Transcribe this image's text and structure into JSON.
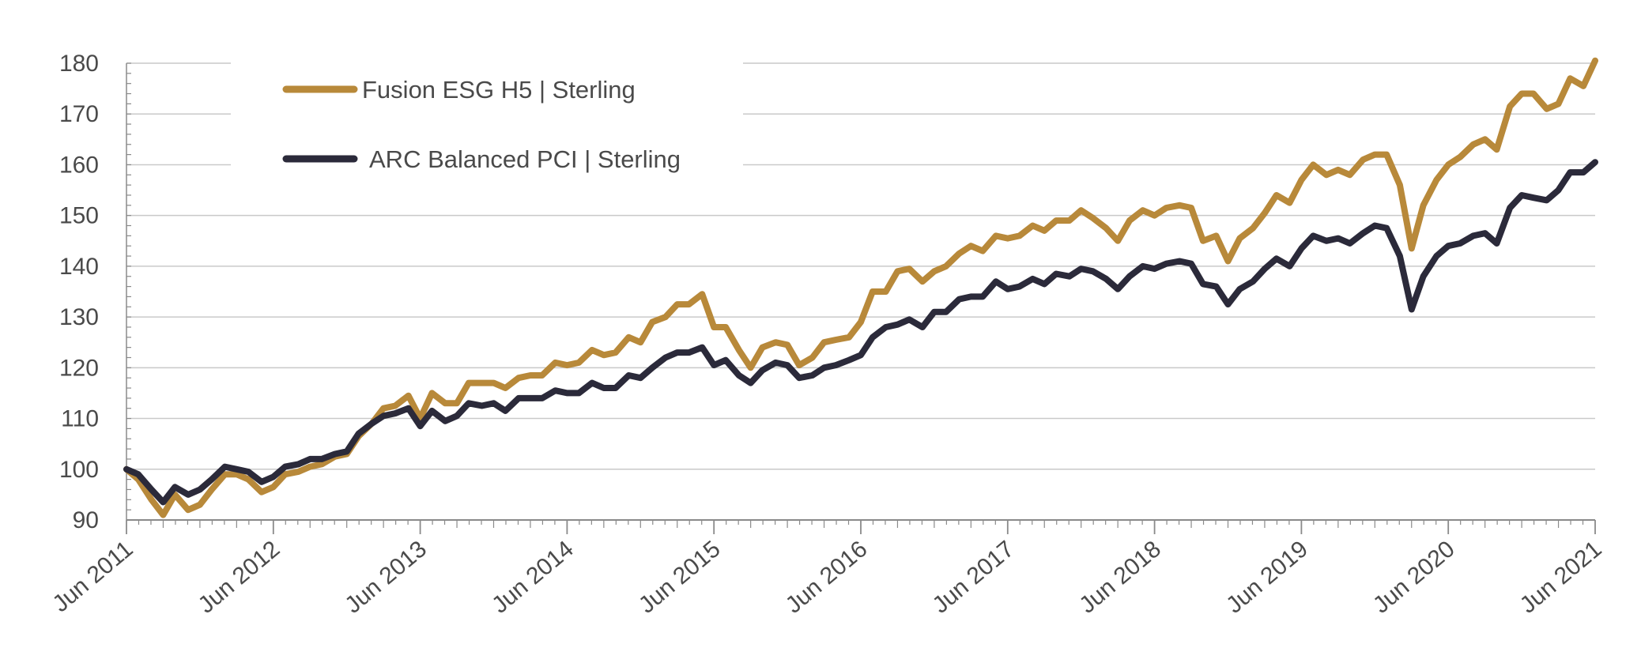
{
  "chart_data": {
    "type": "line",
    "title": "",
    "xlabel": "",
    "ylabel": "",
    "ylim": [
      90,
      180
    ],
    "yticks": [
      90,
      100,
      110,
      120,
      130,
      140,
      150,
      160,
      170,
      180
    ],
    "xlim": [
      2011.5,
      2021.5
    ],
    "xticks": [
      {
        "value": 2011.5,
        "label": "Jun 2011"
      },
      {
        "value": 2012.5,
        "label": "Jun 2012"
      },
      {
        "value": 2013.5,
        "label": "Jun 2013"
      },
      {
        "value": 2014.5,
        "label": "Jun 2014"
      },
      {
        "value": 2015.5,
        "label": "Jun 2015"
      },
      {
        "value": 2016.5,
        "label": "Jun 2016"
      },
      {
        "value": 2017.5,
        "label": "Jun 2017"
      },
      {
        "value": 2018.5,
        "label": "Jun 2018"
      },
      {
        "value": 2019.5,
        "label": "Jun 2019"
      },
      {
        "value": 2020.5,
        "label": "Jun 2020"
      },
      {
        "value": 2021.5,
        "label": "Jun 2021"
      }
    ],
    "grid": {
      "horizontal": true,
      "vertical": false
    },
    "legend_position": "top-left",
    "series": [
      {
        "name": "Fusion ESG H5 | Sterling",
        "color": "#b8893a",
        "points": [
          [
            2011.5,
            100
          ],
          [
            2011.58,
            98
          ],
          [
            2011.67,
            94
          ],
          [
            2011.75,
            91
          ],
          [
            2011.83,
            95
          ],
          [
            2011.92,
            92
          ],
          [
            2012.0,
            93
          ],
          [
            2012.08,
            96
          ],
          [
            2012.17,
            99
          ],
          [
            2012.25,
            99
          ],
          [
            2012.33,
            98
          ],
          [
            2012.42,
            95.5
          ],
          [
            2012.5,
            96.5
          ],
          [
            2012.58,
            99
          ],
          [
            2012.67,
            99.5
          ],
          [
            2012.75,
            100.5
          ],
          [
            2012.83,
            101
          ],
          [
            2012.92,
            102.5
          ],
          [
            2013.0,
            103
          ],
          [
            2013.08,
            106.5
          ],
          [
            2013.17,
            109
          ],
          [
            2013.25,
            112
          ],
          [
            2013.33,
            112.5
          ],
          [
            2013.42,
            114.5
          ],
          [
            2013.5,
            110
          ],
          [
            2013.58,
            115
          ],
          [
            2013.67,
            113
          ],
          [
            2013.75,
            113
          ],
          [
            2013.83,
            117
          ],
          [
            2013.92,
            117
          ],
          [
            2014.0,
            117
          ],
          [
            2014.08,
            116
          ],
          [
            2014.17,
            118
          ],
          [
            2014.25,
            118.5
          ],
          [
            2014.33,
            118.5
          ],
          [
            2014.42,
            121
          ],
          [
            2014.5,
            120.5
          ],
          [
            2014.58,
            121
          ],
          [
            2014.67,
            123.5
          ],
          [
            2014.75,
            122.5
          ],
          [
            2014.83,
            123
          ],
          [
            2014.92,
            126
          ],
          [
            2015.0,
            125
          ],
          [
            2015.08,
            129
          ],
          [
            2015.17,
            130
          ],
          [
            2015.25,
            132.5
          ],
          [
            2015.33,
            132.5
          ],
          [
            2015.42,
            134.5
          ],
          [
            2015.5,
            128
          ],
          [
            2015.58,
            128
          ],
          [
            2015.67,
            123.5
          ],
          [
            2015.75,
            120
          ],
          [
            2015.83,
            124
          ],
          [
            2015.92,
            125
          ],
          [
            2016.0,
            124.5
          ],
          [
            2016.08,
            120.5
          ],
          [
            2016.17,
            122
          ],
          [
            2016.25,
            125
          ],
          [
            2016.33,
            125.5
          ],
          [
            2016.42,
            126
          ],
          [
            2016.5,
            129
          ],
          [
            2016.58,
            135
          ],
          [
            2016.67,
            135
          ],
          [
            2016.75,
            139
          ],
          [
            2016.83,
            139.5
          ],
          [
            2016.92,
            137
          ],
          [
            2017.0,
            139
          ],
          [
            2017.08,
            140
          ],
          [
            2017.17,
            142.5
          ],
          [
            2017.25,
            144
          ],
          [
            2017.33,
            143
          ],
          [
            2017.42,
            146
          ],
          [
            2017.5,
            145.5
          ],
          [
            2017.58,
            146
          ],
          [
            2017.67,
            148
          ],
          [
            2017.75,
            147
          ],
          [
            2017.83,
            149
          ],
          [
            2017.92,
            149
          ],
          [
            2018.0,
            151
          ],
          [
            2018.08,
            149.5
          ],
          [
            2018.17,
            147.5
          ],
          [
            2018.25,
            145
          ],
          [
            2018.33,
            149
          ],
          [
            2018.42,
            151
          ],
          [
            2018.5,
            150
          ],
          [
            2018.58,
            151.5
          ],
          [
            2018.67,
            152
          ],
          [
            2018.75,
            151.5
          ],
          [
            2018.83,
            145
          ],
          [
            2018.92,
            146
          ],
          [
            2019.0,
            141
          ],
          [
            2019.08,
            145.5
          ],
          [
            2019.17,
            147.5
          ],
          [
            2019.25,
            150.5
          ],
          [
            2019.33,
            154
          ],
          [
            2019.42,
            152.5
          ],
          [
            2019.5,
            157
          ],
          [
            2019.58,
            160
          ],
          [
            2019.67,
            158
          ],
          [
            2019.75,
            159
          ],
          [
            2019.83,
            158
          ],
          [
            2019.92,
            161
          ],
          [
            2020.0,
            162
          ],
          [
            2020.08,
            162
          ],
          [
            2020.17,
            156
          ],
          [
            2020.25,
            143.5
          ],
          [
            2020.33,
            152
          ],
          [
            2020.42,
            157
          ],
          [
            2020.5,
            160
          ],
          [
            2020.58,
            161.5
          ],
          [
            2020.67,
            164
          ],
          [
            2020.75,
            165
          ],
          [
            2020.83,
            163
          ],
          [
            2020.92,
            171.5
          ],
          [
            2021.0,
            174
          ],
          [
            2021.08,
            174
          ],
          [
            2021.17,
            171
          ],
          [
            2021.25,
            172
          ],
          [
            2021.33,
            177
          ],
          [
            2021.42,
            175.5
          ],
          [
            2021.5,
            180.5
          ]
        ]
      },
      {
        "name": "ARC Balanced PCI | Sterling",
        "color": "#2b2a3a",
        "points": [
          [
            2011.5,
            100
          ],
          [
            2011.58,
            99
          ],
          [
            2011.67,
            96
          ],
          [
            2011.75,
            93.5
          ],
          [
            2011.83,
            96.5
          ],
          [
            2011.92,
            95
          ],
          [
            2012.0,
            96
          ],
          [
            2012.08,
            98
          ],
          [
            2012.17,
            100.5
          ],
          [
            2012.25,
            100
          ],
          [
            2012.33,
            99.5
          ],
          [
            2012.42,
            97.5
          ],
          [
            2012.5,
            98.5
          ],
          [
            2012.58,
            100.5
          ],
          [
            2012.67,
            101
          ],
          [
            2012.75,
            102
          ],
          [
            2012.83,
            102
          ],
          [
            2012.92,
            103
          ],
          [
            2013.0,
            103.5
          ],
          [
            2013.08,
            107
          ],
          [
            2013.17,
            109
          ],
          [
            2013.25,
            110.5
          ],
          [
            2013.33,
            111
          ],
          [
            2013.42,
            112
          ],
          [
            2013.5,
            108.5
          ],
          [
            2013.58,
            111.5
          ],
          [
            2013.67,
            109.5
          ],
          [
            2013.75,
            110.5
          ],
          [
            2013.83,
            113
          ],
          [
            2013.92,
            112.5
          ],
          [
            2014.0,
            113
          ],
          [
            2014.08,
            111.5
          ],
          [
            2014.17,
            114
          ],
          [
            2014.25,
            114
          ],
          [
            2014.33,
            114
          ],
          [
            2014.42,
            115.5
          ],
          [
            2014.5,
            115
          ],
          [
            2014.58,
            115
          ],
          [
            2014.67,
            117
          ],
          [
            2014.75,
            116
          ],
          [
            2014.83,
            116
          ],
          [
            2014.92,
            118.5
          ],
          [
            2015.0,
            118
          ],
          [
            2015.08,
            120
          ],
          [
            2015.17,
            122
          ],
          [
            2015.25,
            123
          ],
          [
            2015.33,
            123
          ],
          [
            2015.42,
            124
          ],
          [
            2015.5,
            120.5
          ],
          [
            2015.58,
            121.5
          ],
          [
            2015.67,
            118.5
          ],
          [
            2015.75,
            117
          ],
          [
            2015.83,
            119.5
          ],
          [
            2015.92,
            121
          ],
          [
            2016.0,
            120.5
          ],
          [
            2016.08,
            118
          ],
          [
            2016.17,
            118.5
          ],
          [
            2016.25,
            120
          ],
          [
            2016.33,
            120.5
          ],
          [
            2016.42,
            121.5
          ],
          [
            2016.5,
            122.5
          ],
          [
            2016.58,
            126
          ],
          [
            2016.67,
            128
          ],
          [
            2016.75,
            128.5
          ],
          [
            2016.83,
            129.5
          ],
          [
            2016.92,
            128
          ],
          [
            2017.0,
            131
          ],
          [
            2017.08,
            131
          ],
          [
            2017.17,
            133.5
          ],
          [
            2017.25,
            134
          ],
          [
            2017.33,
            134
          ],
          [
            2017.42,
            137
          ],
          [
            2017.5,
            135.5
          ],
          [
            2017.58,
            136
          ],
          [
            2017.67,
            137.5
          ],
          [
            2017.75,
            136.5
          ],
          [
            2017.83,
            138.5
          ],
          [
            2017.92,
            138
          ],
          [
            2018.0,
            139.5
          ],
          [
            2018.08,
            139
          ],
          [
            2018.17,
            137.5
          ],
          [
            2018.25,
            135.5
          ],
          [
            2018.33,
            138
          ],
          [
            2018.42,
            140
          ],
          [
            2018.5,
            139.5
          ],
          [
            2018.58,
            140.5
          ],
          [
            2018.67,
            141
          ],
          [
            2018.75,
            140.5
          ],
          [
            2018.83,
            136.5
          ],
          [
            2018.92,
            136
          ],
          [
            2019.0,
            132.5
          ],
          [
            2019.08,
            135.5
          ],
          [
            2019.17,
            137
          ],
          [
            2019.25,
            139.5
          ],
          [
            2019.33,
            141.5
          ],
          [
            2019.42,
            140
          ],
          [
            2019.5,
            143.5
          ],
          [
            2019.58,
            146
          ],
          [
            2019.67,
            145
          ],
          [
            2019.75,
            145.5
          ],
          [
            2019.83,
            144.5
          ],
          [
            2019.92,
            146.5
          ],
          [
            2020.0,
            148
          ],
          [
            2020.08,
            147.5
          ],
          [
            2020.17,
            142
          ],
          [
            2020.25,
            131.5
          ],
          [
            2020.33,
            138
          ],
          [
            2020.42,
            142
          ],
          [
            2020.5,
            144
          ],
          [
            2020.58,
            144.5
          ],
          [
            2020.67,
            146
          ],
          [
            2020.75,
            146.5
          ],
          [
            2020.83,
            144.5
          ],
          [
            2020.92,
            151.5
          ],
          [
            2021.0,
            154
          ],
          [
            2021.08,
            153.5
          ],
          [
            2021.17,
            153
          ],
          [
            2021.25,
            155
          ],
          [
            2021.33,
            158.5
          ],
          [
            2021.42,
            158.5
          ],
          [
            2021.5,
            160.5
          ]
        ]
      }
    ]
  }
}
